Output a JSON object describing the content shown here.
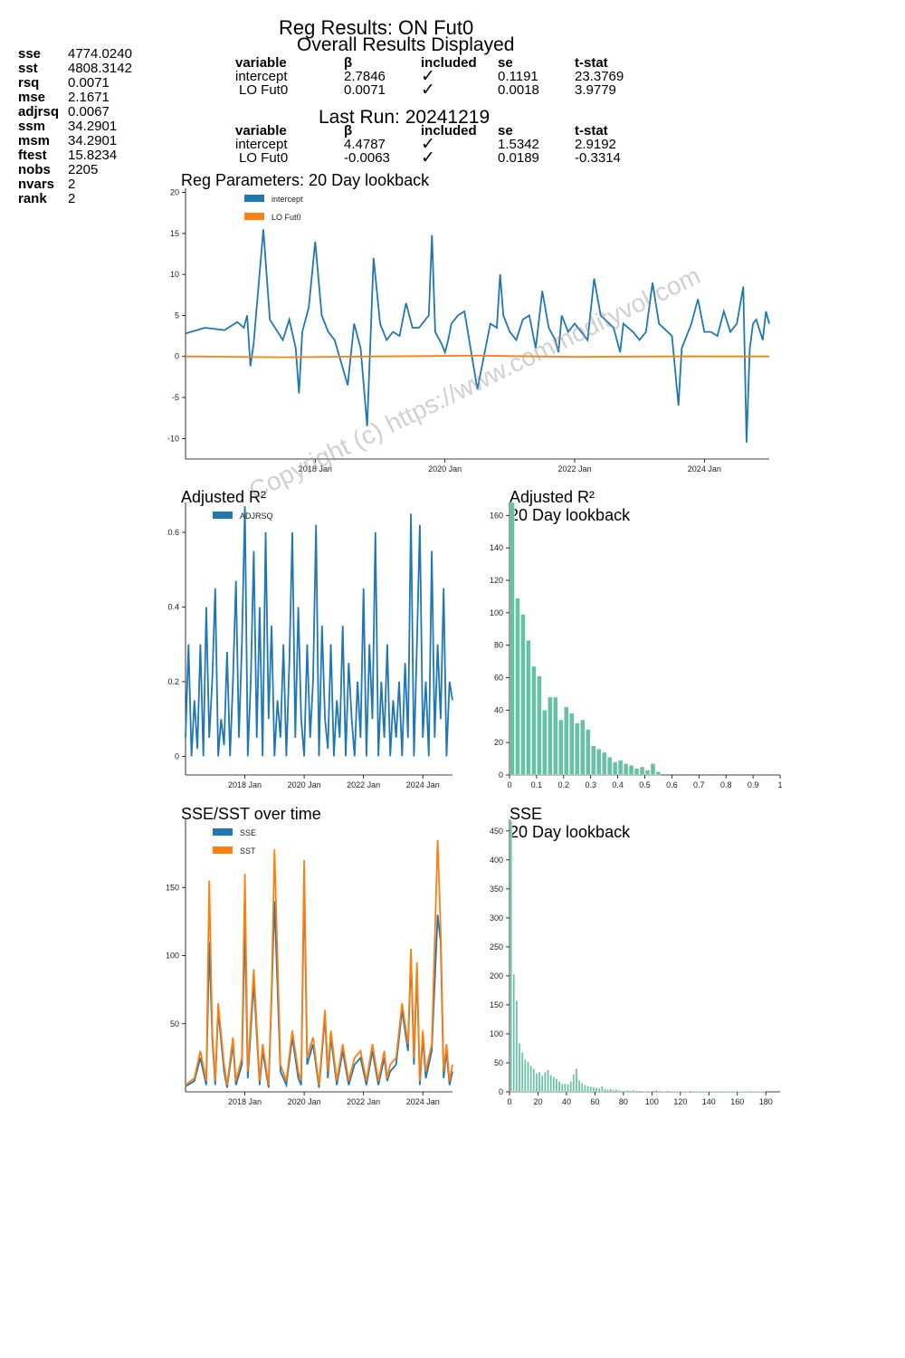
{
  "header": {
    "title": "Reg Results: ON Fut0",
    "overall_title": "Overall Results Displayed",
    "last_run_title": "Last Run: 20241219"
  },
  "stats": [
    {
      "k": "sse",
      "v": "4774.0240"
    },
    {
      "k": "sst",
      "v": "4808.3142"
    },
    {
      "k": "rsq",
      "v": "0.0071"
    },
    {
      "k": "mse",
      "v": "2.1671"
    },
    {
      "k": "adjrsq",
      "v": "0.0067"
    },
    {
      "k": "ssm",
      "v": "34.2901"
    },
    {
      "k": "msm",
      "v": "34.2901"
    },
    {
      "k": "ftest",
      "v": "15.8234"
    },
    {
      "k": "nobs",
      "v": "2205"
    },
    {
      "k": "nvars",
      "v": "2"
    },
    {
      "k": "rank",
      "v": "2"
    }
  ],
  "table_headers": [
    "variable",
    "β",
    "included",
    "se",
    "t-stat"
  ],
  "overall_table": [
    [
      "intercept",
      "2.7846",
      "✓",
      "0.1191",
      "23.3769"
    ],
    [
      "LO Fut0",
      "0.0071",
      "✓",
      "0.0018",
      "3.9779"
    ]
  ],
  "last_run_table": [
    [
      "intercept",
      "4.4787",
      "✓",
      "1.5342",
      "2.9192"
    ],
    [
      "LO Fut0",
      "-0.0063",
      "✓",
      "0.0189",
      "-0.3314"
    ]
  ],
  "watermark": "Copyright (c) https://www.commodityvol.com",
  "colors": {
    "blue": "#1f77b4",
    "orange": "#ff7f0e",
    "teal": "#66c2a5"
  },
  "chart_data": [
    {
      "id": "params",
      "type": "line",
      "title": "Reg Parameters: 20 Day lookback",
      "x_ticks": [
        "2018 Jan",
        "2020 Jan",
        "2022 Jan",
        "2024 Jan"
      ],
      "y_ticks": [
        -10,
        -5,
        0,
        5,
        10,
        15,
        20
      ],
      "ylim": [
        -12.5,
        20.5
      ],
      "legend": "top-left",
      "series": [
        {
          "name": "intercept",
          "color": "#1f77b4",
          "x": [
            2016.0,
            2016.3,
            2016.6,
            2016.8,
            2016.9,
            2016.95,
            2017.0,
            2017.05,
            2017.2,
            2017.3,
            2017.5,
            2017.6,
            2017.7,
            2017.75,
            2017.8,
            2017.85,
            2017.9,
            2018.0,
            2018.1,
            2018.2,
            2018.3,
            2018.5,
            2018.6,
            2018.7,
            2018.8,
            2018.9,
            2019.0,
            2019.1,
            2019.2,
            2019.3,
            2019.4,
            2019.5,
            2019.6,
            2019.75,
            2019.8,
            2019.85,
            2019.95,
            2020.0,
            2020.05,
            2020.1,
            2020.2,
            2020.3,
            2020.5,
            2020.6,
            2020.7,
            2020.8,
            2020.85,
            2020.9,
            2021.0,
            2021.1,
            2021.2,
            2021.3,
            2021.4,
            2021.5,
            2021.6,
            2021.7,
            2021.75,
            2021.8,
            2021.9,
            2022.0,
            2022.1,
            2022.2,
            2022.3,
            2022.4,
            2022.6,
            2022.7,
            2022.75,
            2022.9,
            2023.0,
            2023.1,
            2023.2,
            2023.3,
            2023.5,
            2023.6,
            2023.65,
            2023.8,
            2023.9,
            2024.0,
            2024.1,
            2024.2,
            2024.3,
            2024.4,
            2024.5,
            2024.6,
            2024.65,
            2024.7,
            2024.75,
            2024.8,
            2024.9,
            2024.95,
            2025.0
          ],
          "y": [
            2.8,
            3.5,
            3.2,
            4.2,
            3.5,
            5.0,
            -1.2,
            1.5,
            15.5,
            4.5,
            2.0,
            4.5,
            1.0,
            -4.5,
            3.0,
            4.5,
            6.0,
            14.0,
            5.0,
            3.0,
            2.0,
            -3.5,
            4.0,
            1.0,
            -8.5,
            12.0,
            4.0,
            2.0,
            3.0,
            2.5,
            6.5,
            3.5,
            3.5,
            5.0,
            14.8,
            3.0,
            1.5,
            0.5,
            2.0,
            4.0,
            5.0,
            5.5,
            -4.0,
            0.0,
            4.0,
            3.5,
            10.0,
            5.0,
            3.0,
            2.0,
            4.5,
            5.0,
            1.0,
            8.0,
            3.5,
            2.0,
            0.5,
            5.0,
            3.0,
            4.0,
            3.0,
            2.0,
            9.5,
            5.0,
            3.5,
            0.5,
            4.0,
            3.0,
            2.0,
            3.0,
            9.0,
            4.0,
            2.5,
            -6.0,
            1.0,
            4.0,
            7.0,
            3.0,
            3.0,
            2.5,
            5.5,
            3.0,
            4.0,
            8.5,
            -10.5,
            1.0,
            4.0,
            4.5,
            2.0,
            5.5,
            4.0
          ]
        },
        {
          "name": "LO Fut0",
          "color": "#ff7f0e",
          "x": [
            2016.0,
            2017.5,
            2019.0,
            2020.5,
            2022.0,
            2023.5,
            2025.0
          ],
          "y": [
            0.0,
            -0.1,
            0.0,
            0.1,
            -0.05,
            0.0,
            0.0
          ]
        }
      ]
    },
    {
      "id": "adjr2",
      "type": "line",
      "title": "Adjusted R²",
      "x_ticks": [
        "2018 Jan",
        "2020 Jan",
        "2022 Jan",
        "2024 Jan"
      ],
      "y_ticks": [
        0.0,
        0.2,
        0.4,
        0.6
      ],
      "ylim": [
        -0.05,
        0.68
      ],
      "legend": "top-left",
      "series": [
        {
          "name": "ADJRSQ",
          "color": "#1f77b4",
          "x": [
            2016.0,
            2016.1,
            2016.2,
            2016.3,
            2016.4,
            2016.5,
            2016.6,
            2016.7,
            2016.8,
            2016.9,
            2017.0,
            2017.1,
            2017.2,
            2017.3,
            2017.4,
            2017.5,
            2017.6,
            2017.7,
            2017.8,
            2017.9,
            2018.0,
            2018.1,
            2018.2,
            2018.3,
            2018.4,
            2018.5,
            2018.6,
            2018.7,
            2018.8,
            2018.9,
            2019.0,
            2019.1,
            2019.2,
            2019.3,
            2019.4,
            2019.5,
            2019.6,
            2019.7,
            2019.8,
            2019.9,
            2020.0,
            2020.1,
            2020.2,
            2020.3,
            2020.4,
            2020.5,
            2020.6,
            2020.7,
            2020.8,
            2020.9,
            2021.0,
            2021.1,
            2021.2,
            2021.3,
            2021.4,
            2021.5,
            2021.6,
            2021.7,
            2021.8,
            2021.9,
            2022.0,
            2022.1,
            2022.2,
            2022.3,
            2022.4,
            2022.5,
            2022.6,
            2022.7,
            2022.8,
            2022.9,
            2023.0,
            2023.1,
            2023.2,
            2023.3,
            2023.4,
            2023.5,
            2023.6,
            2023.7,
            2023.8,
            2023.9,
            2024.0,
            2024.1,
            2024.2,
            2024.3,
            2024.4,
            2024.5,
            2024.6,
            2024.7,
            2024.8,
            2024.9,
            2025.0
          ],
          "y": [
            0.05,
            0.3,
            0.0,
            0.15,
            0.02,
            0.3,
            0.0,
            0.4,
            0.05,
            0.2,
            0.45,
            0.0,
            0.1,
            0.03,
            0.28,
            0.0,
            0.2,
            0.47,
            0.05,
            0.3,
            0.67,
            0.0,
            0.2,
            0.55,
            0.05,
            0.4,
            0.0,
            0.6,
            0.1,
            0.35,
            0.0,
            0.15,
            0.05,
            0.3,
            0.0,
            0.25,
            0.6,
            0.05,
            0.4,
            0.1,
            0.0,
            0.3,
            0.05,
            0.2,
            0.62,
            0.0,
            0.35,
            0.1,
            0.02,
            0.3,
            0.0,
            0.15,
            0.05,
            0.35,
            0.0,
            0.25,
            0.1,
            0.0,
            0.2,
            0.05,
            0.45,
            0.0,
            0.3,
            0.1,
            0.6,
            0.0,
            0.2,
            0.05,
            0.3,
            0.0,
            0.15,
            0.05,
            0.2,
            0.0,
            0.25,
            0.05,
            0.65,
            0.0,
            0.3,
            0.62,
            0.05,
            0.2,
            0.0,
            0.55,
            0.05,
            0.3,
            0.1,
            0.45,
            0.0,
            0.2,
            0.15
          ]
        }
      ]
    },
    {
      "id": "adjr2hist",
      "type": "bar",
      "title": "Adjusted R²",
      "subtitle": "20 Day lookback",
      "x_ticks": [
        0.0,
        0.1,
        0.2,
        0.3,
        0.4,
        0.5,
        0.6,
        0.7,
        0.8,
        0.9,
        1.0
      ],
      "y_ticks": [
        0,
        20,
        40,
        60,
        80,
        100,
        120,
        140,
        160
      ],
      "ylim": [
        0,
        168
      ],
      "bin_width": 0.02,
      "bin_start": 0.0,
      "values": [
        168,
        109,
        99,
        83,
        67,
        61,
        40,
        48,
        48,
        34,
        42,
        38,
        32,
        34,
        28,
        18,
        16,
        14,
        11,
        8,
        9,
        7,
        6,
        4,
        5,
        3,
        7,
        2,
        0,
        0,
        0,
        0,
        0,
        0,
        0,
        0,
        0,
        0,
        0,
        0,
        0,
        0,
        0,
        0,
        0,
        0,
        0,
        0,
        0,
        0
      ]
    },
    {
      "id": "ssesst",
      "type": "line",
      "title": "SSE/SST over time",
      "x_ticks": [
        "2018 Jan",
        "2020 Jan",
        "2022 Jan",
        "2024 Jan"
      ],
      "y_ticks": [
        50,
        100,
        150
      ],
      "ylim": [
        0,
        200
      ],
      "legend": "top-left",
      "series": [
        {
          "name": "SSE",
          "color": "#1f77b4",
          "x": [
            2016.0,
            2016.3,
            2016.5,
            2016.7,
            2016.8,
            2016.9,
            2017.0,
            2017.1,
            2017.3,
            2017.4,
            2017.6,
            2017.7,
            2017.9,
            2018.0,
            2018.1,
            2018.3,
            2018.5,
            2018.6,
            2018.8,
            2018.9,
            2019.0,
            2019.2,
            2019.4,
            2019.6,
            2019.8,
            2019.9,
            2020.0,
            2020.1,
            2020.3,
            2020.5,
            2020.7,
            2020.8,
            2020.9,
            2021.1,
            2021.3,
            2021.5,
            2021.7,
            2021.9,
            2022.1,
            2022.3,
            2022.5,
            2022.7,
            2022.8,
            2022.9,
            2023.1,
            2023.3,
            2023.5,
            2023.6,
            2023.7,
            2023.8,
            2023.9,
            2024.0,
            2024.1,
            2024.3,
            2024.5,
            2024.6,
            2024.7,
            2024.8,
            2024.9,
            2025.0
          ],
          "y": [
            4,
            8,
            25,
            5,
            110,
            40,
            5,
            60,
            15,
            3,
            35,
            5,
            20,
            125,
            10,
            80,
            5,
            30,
            3,
            70,
            140,
            15,
            5,
            40,
            10,
            5,
            155,
            20,
            35,
            3,
            55,
            10,
            40,
            5,
            30,
            5,
            20,
            25,
            5,
            30,
            5,
            25,
            8,
            15,
            20,
            60,
            30,
            100,
            20,
            90,
            5,
            40,
            10,
            30,
            130,
            110,
            10,
            30,
            5,
            15
          ]
        },
        {
          "name": "SST",
          "color": "#ff7f0e",
          "x": [
            2016.0,
            2016.3,
            2016.5,
            2016.7,
            2016.8,
            2016.9,
            2017.0,
            2017.1,
            2017.3,
            2017.4,
            2017.6,
            2017.7,
            2017.9,
            2018.0,
            2018.1,
            2018.3,
            2018.5,
            2018.6,
            2018.8,
            2018.9,
            2019.0,
            2019.2,
            2019.4,
            2019.6,
            2019.8,
            2019.9,
            2020.0,
            2020.1,
            2020.3,
            2020.5,
            2020.7,
            2020.8,
            2020.9,
            2021.1,
            2021.3,
            2021.5,
            2021.7,
            2021.9,
            2022.1,
            2022.3,
            2022.5,
            2022.7,
            2022.8,
            2022.9,
            2023.1,
            2023.3,
            2023.5,
            2023.6,
            2023.7,
            2023.8,
            2023.9,
            2024.0,
            2024.1,
            2024.3,
            2024.5,
            2024.6,
            2024.7,
            2024.8,
            2024.9,
            2025.0
          ],
          "y": [
            5,
            10,
            30,
            8,
            155,
            45,
            8,
            65,
            20,
            5,
            40,
            8,
            25,
            160,
            15,
            90,
            8,
            35,
            5,
            75,
            178,
            20,
            8,
            45,
            15,
            8,
            170,
            25,
            40,
            5,
            60,
            15,
            45,
            8,
            35,
            8,
            25,
            30,
            8,
            35,
            8,
            30,
            10,
            20,
            25,
            65,
            35,
            105,
            25,
            95,
            8,
            45,
            15,
            35,
            185,
            120,
            15,
            35,
            8,
            20
          ]
        }
      ]
    },
    {
      "id": "ssehist",
      "type": "bar",
      "title": "SSE",
      "subtitle": "20 Day lookback",
      "x_ticks": [
        0,
        20,
        40,
        60,
        80,
        100,
        120,
        140,
        160,
        180
      ],
      "y_ticks": [
        0,
        50,
        100,
        150,
        200,
        250,
        300,
        350,
        400,
        450
      ],
      "ylim": [
        0,
        470
      ],
      "bin_width": 2,
      "bin_start": 0,
      "values": [
        468,
        203,
        157,
        84,
        68,
        56,
        52,
        45,
        40,
        32,
        34,
        28,
        34,
        38,
        29,
        26,
        22,
        18,
        14,
        14,
        13,
        18,
        30,
        40,
        20,
        15,
        12,
        10,
        9,
        8,
        7,
        6,
        10,
        5,
        4,
        5,
        3,
        4,
        3,
        2,
        2,
        3,
        2,
        3,
        2,
        2,
        2,
        1,
        2,
        1,
        2,
        3,
        2,
        1,
        1,
        2,
        1,
        1,
        1,
        1,
        1,
        1,
        1,
        2,
        1,
        1,
        1,
        1,
        1,
        1,
        1,
        1,
        1,
        1,
        1,
        1,
        1,
        1,
        1,
        1,
        1,
        1,
        1,
        1,
        1,
        1,
        1,
        1,
        1,
        1
      ]
    }
  ]
}
